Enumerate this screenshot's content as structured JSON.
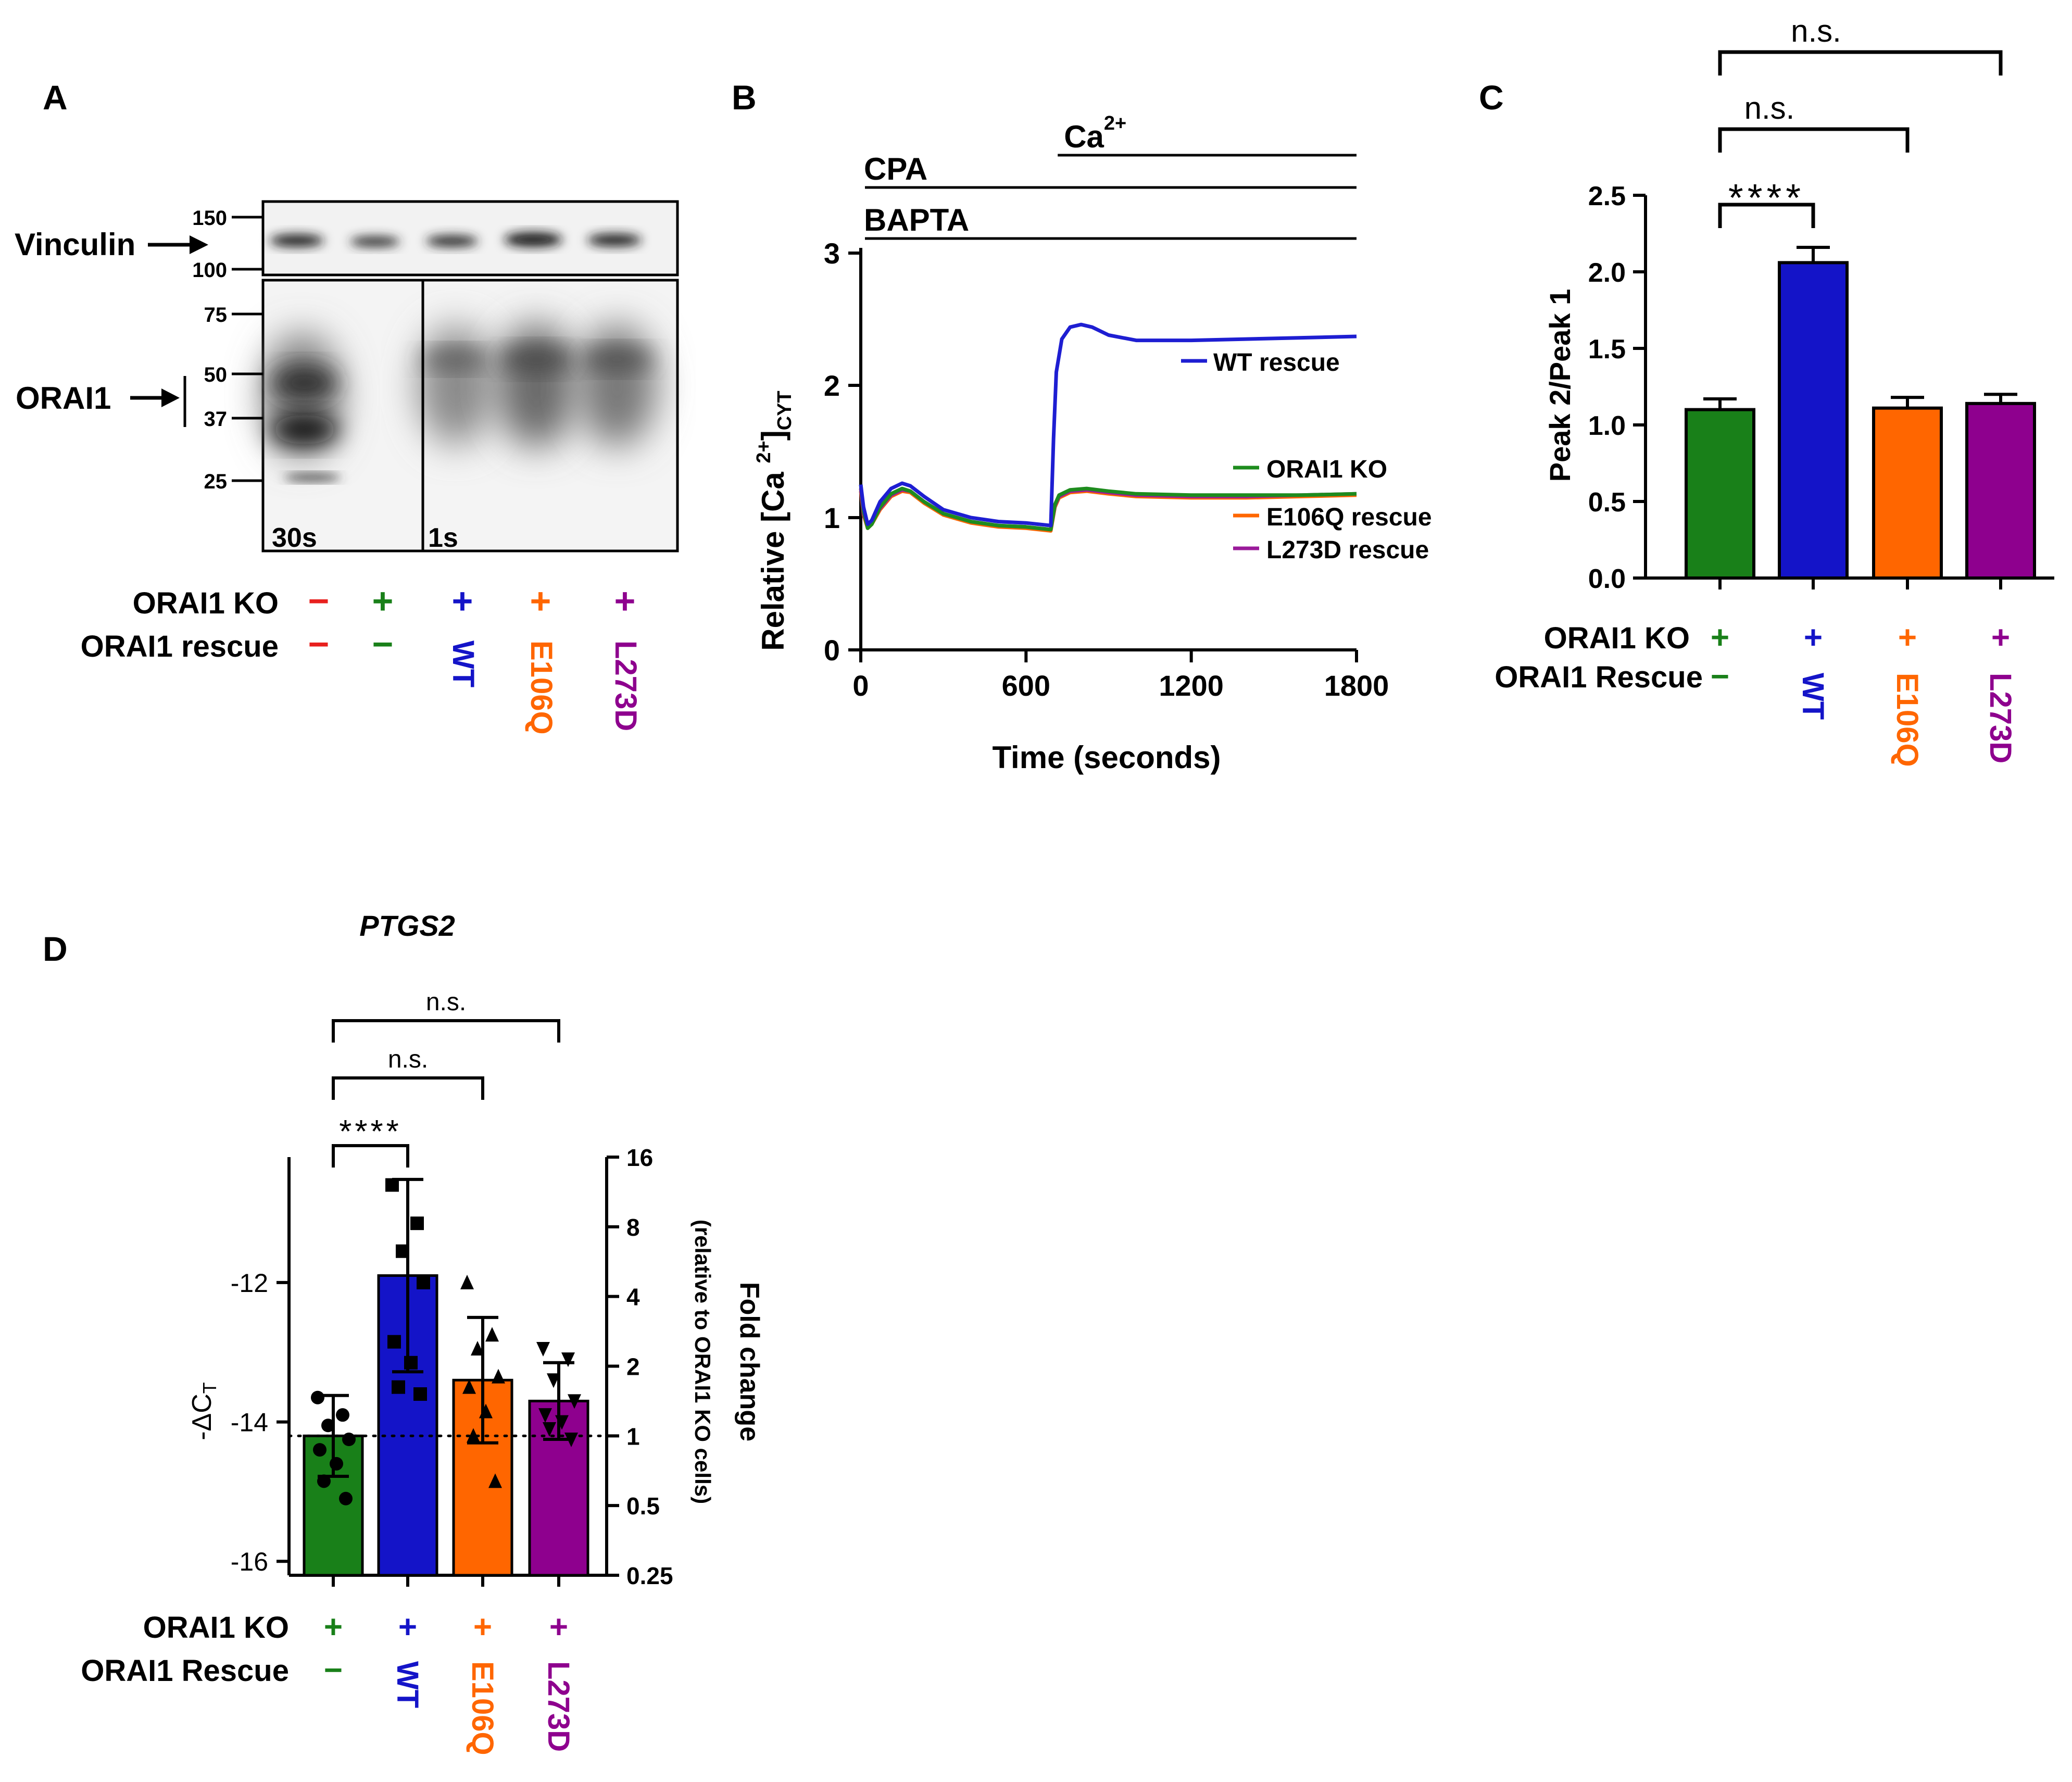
{
  "colors": {
    "black": "#000000",
    "red": "#e8201e",
    "green": "#198019",
    "blue": "#1414c8",
    "orange": "#ff6600",
    "purple": "#8e008e",
    "wt_trace": "#1e1ed2",
    "e106q_trace": "#ff6600",
    "l273d_trace": "#9a1a9a",
    "ko_trace": "#1e8c1e"
  },
  "panel_labels": {
    "a": "A",
    "b": "B",
    "c": "C",
    "d": "D"
  },
  "panel_a": {
    "type": "western-blot",
    "vinculin_label": "Vinculin",
    "orai1_label": "ORAI1",
    "vinculin_markers": [
      "150",
      "100"
    ],
    "orai1_markers": [
      "75",
      "50",
      "37",
      "25"
    ],
    "exposure_left": "30s",
    "exposure_right": "1s",
    "rows": [
      {
        "label": "ORAI1 KO",
        "values": [
          "−",
          "+",
          "+",
          "+",
          "+"
        ]
      },
      {
        "label": "ORAI1 rescue",
        "values": [
          "−",
          "−",
          "WT",
          "E106Q",
          "L273D"
        ]
      }
    ]
  },
  "panel_b": {
    "chart_data": {
      "type": "line",
      "title": "",
      "xlabel": "Time (seconds)",
      "ylabel_main": "Relative [Ca ",
      "ylabel_sup": "2+",
      "ylabel_close": "]",
      "ylabel_sub": "CYT",
      "xlim": [
        0,
        1800
      ],
      "ylim": [
        0,
        3
      ],
      "xticks": [
        "0",
        "600",
        "1200",
        "1800"
      ],
      "yticks": [
        "0",
        "1",
        "2",
        "3"
      ],
      "treatments": [
        {
          "label": "BAPTA",
          "start": 0,
          "end": 1800
        },
        {
          "label": "CPA",
          "start": 0,
          "end": 1800
        },
        {
          "label": "Ca",
          "sup": "2+",
          "start": 700,
          "end": 1800
        }
      ],
      "series": [
        {
          "name": "ORAI1 KO",
          "color_key": "ko_trace",
          "x": [
            0,
            10,
            25,
            40,
            70,
            110,
            150,
            180,
            230,
            300,
            400,
            500,
            600,
            690,
            705,
            720,
            760,
            820,
            900,
            1000,
            1200,
            1400,
            1600,
            1800
          ],
          "y": [
            1.25,
            1.05,
            0.92,
            0.95,
            1.08,
            1.18,
            1.22,
            1.2,
            1.12,
            1.03,
            0.97,
            0.94,
            0.93,
            0.91,
            1.1,
            1.17,
            1.21,
            1.22,
            1.2,
            1.18,
            1.17,
            1.17,
            1.17,
            1.18
          ]
        },
        {
          "name": "WT rescue",
          "color_key": "wt_trace",
          "x": [
            0,
            10,
            25,
            40,
            70,
            110,
            150,
            180,
            230,
            300,
            400,
            500,
            600,
            690,
            700,
            710,
            730,
            760,
            800,
            840,
            900,
            1000,
            1200,
            1400,
            1600,
            1800
          ],
          "y": [
            1.25,
            1.08,
            0.95,
            0.98,
            1.12,
            1.22,
            1.26,
            1.24,
            1.16,
            1.06,
            1.0,
            0.97,
            0.96,
            0.94,
            1.6,
            2.1,
            2.35,
            2.44,
            2.46,
            2.44,
            2.38,
            2.34,
            2.34,
            2.35,
            2.36,
            2.37
          ]
        },
        {
          "name": "E106Q rescue",
          "color_key": "e106q_trace",
          "x": [
            0,
            10,
            25,
            40,
            70,
            110,
            150,
            180,
            230,
            300,
            400,
            500,
            600,
            690,
            705,
            720,
            760,
            820,
            900,
            1000,
            1200,
            1400,
            1600,
            1800
          ],
          "y": [
            1.2,
            1.02,
            0.92,
            0.95,
            1.06,
            1.16,
            1.2,
            1.19,
            1.11,
            1.02,
            0.96,
            0.93,
            0.92,
            0.9,
            1.08,
            1.15,
            1.19,
            1.2,
            1.18,
            1.16,
            1.15,
            1.15,
            1.16,
            1.17
          ]
        },
        {
          "name": "L273D rescue",
          "color_key": "l273d_trace",
          "x": [
            0,
            10,
            25,
            40,
            70,
            110,
            150,
            180,
            230,
            300,
            400,
            500,
            600,
            690,
            705,
            720,
            760,
            820,
            900,
            1000,
            1200,
            1400,
            1600,
            1800
          ],
          "y": [
            1.22,
            1.03,
            0.93,
            0.96,
            1.07,
            1.17,
            1.21,
            1.2,
            1.12,
            1.03,
            0.97,
            0.94,
            0.93,
            0.91,
            1.09,
            1.16,
            1.2,
            1.21,
            1.19,
            1.17,
            1.16,
            1.16,
            1.17,
            1.18
          ]
        }
      ]
    }
  },
  "panel_c": {
    "chart_data": {
      "type": "bar",
      "ylabel": "Peak 2/Peak 1",
      "ylim": [
        0,
        2.5
      ],
      "yticks": [
        "0.0",
        "0.5",
        "1.0",
        "1.5",
        "2.0",
        "2.5"
      ],
      "categories": [
        "ORAI1 KO",
        "WT rescue",
        "E106Q rescue",
        "L273D rescue"
      ],
      "values": [
        1.1,
        2.06,
        1.11,
        1.14
      ],
      "errors": [
        0.07,
        0.1,
        0.07,
        0.06
      ],
      "bar_color_keys": [
        "green",
        "blue",
        "orange",
        "purple"
      ],
      "significance": [
        {
          "from": 0,
          "to": 1,
          "label": "****"
        },
        {
          "from": 0,
          "to": 2,
          "label": "n.s."
        },
        {
          "from": 0,
          "to": 3,
          "label": "n.s."
        }
      ],
      "rows": [
        {
          "label": "ORAI1 KO",
          "values": [
            "+",
            "+",
            "+",
            "+"
          ]
        },
        {
          "label": "ORAI1 Rescue",
          "values": [
            "−",
            "WT",
            "E106Q",
            "L273D"
          ]
        }
      ]
    }
  },
  "panel_d": {
    "chart_data": {
      "type": "bar",
      "title": "PTGS2",
      "ylabel_left": "-ΔC",
      "ylabel_left_sub": "T",
      "ylabel_right": "Fold change",
      "ylabel_right_sub": "(relative to ORAI1 KO cells)",
      "ylim": [
        -16.2,
        -10.2
      ],
      "yticks": [
        "-12",
        "-14",
        "-16"
      ],
      "ytick_values": [
        -12,
        -14,
        -16
      ],
      "right_ticks": [
        "16",
        "8",
        "4",
        "2",
        "1",
        "0.5",
        "0.25"
      ],
      "right_tick_fold": [
        16,
        8,
        4,
        2,
        1,
        0.5,
        0.25
      ],
      "reference_line": -14.2,
      "categories": [
        "ORAI1 KO",
        "WT rescue",
        "E106Q rescue",
        "L273D rescue"
      ],
      "values": [
        -14.2,
        -11.9,
        -13.4,
        -13.7
      ],
      "errors": [
        0.58,
        1.38,
        0.9,
        0.55
      ],
      "bar_color_keys": [
        "green",
        "blue",
        "orange",
        "purple"
      ],
      "markers": [
        "circle",
        "square",
        "triangle-up",
        "triangle-down"
      ],
      "points": [
        [
          -13.65,
          -13.9,
          -14.05,
          -14.25,
          -14.4,
          -14.6,
          -14.85,
          -15.1
        ],
        [
          -10.6,
          -11.15,
          -11.55,
          -12.0,
          -12.85,
          -13.15,
          -13.5,
          -13.6
        ],
        [
          -12.0,
          -12.75,
          -12.95,
          -13.35,
          -13.5,
          -13.85,
          -14.2,
          -14.85
        ],
        [
          -12.95,
          -13.1,
          -13.4,
          -13.7,
          -13.9,
          -14.0,
          -14.1,
          -14.25
        ]
      ],
      "significance": [
        {
          "from": 0,
          "to": 1,
          "label": "****"
        },
        {
          "from": 0,
          "to": 2,
          "label": "n.s."
        },
        {
          "from": 0,
          "to": 3,
          "label": "n.s."
        }
      ],
      "rows": [
        {
          "label": "ORAI1 KO",
          "values": [
            "+",
            "+",
            "+",
            "+"
          ]
        },
        {
          "label": "ORAI1 Rescue",
          "values": [
            "−",
            "WT",
            "E106Q",
            "L273D"
          ]
        }
      ]
    }
  }
}
